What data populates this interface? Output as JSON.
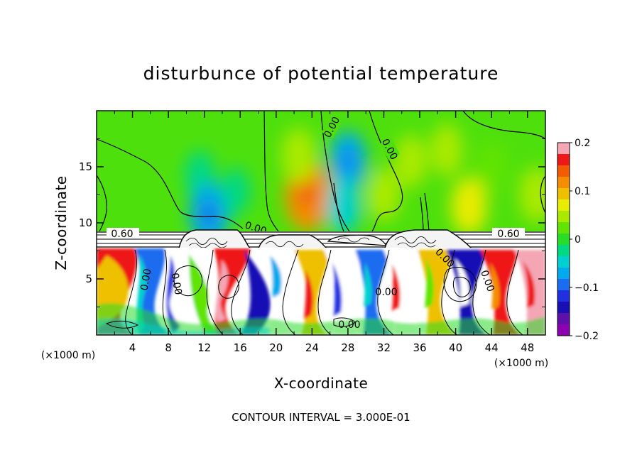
{
  "chart_data": {
    "type": "heatmap",
    "title": "disturbunce of potential temperature",
    "xlabel": "X-coordinate",
    "ylabel": "Z-coordinate",
    "x_unit": "(×1000 m)",
    "z_unit": "(×1000 m)",
    "xlim": [
      0,
      50
    ],
    "ylim": [
      0,
      20
    ],
    "x_ticks": [
      4,
      8,
      12,
      16,
      20,
      24,
      28,
      32,
      36,
      40,
      44,
      48
    ],
    "x_tick_labels": [
      "4",
      "8",
      "12",
      "16",
      "20",
      "24",
      "28",
      "32",
      "36",
      "40",
      "44",
      "48"
    ],
    "y_ticks": [
      5,
      10,
      15
    ],
    "y_tick_labels": [
      "5",
      "10",
      "15"
    ],
    "colorbar": {
      "range": [
        -0.2,
        0.2
      ],
      "tick_values": [
        0.2,
        0.1,
        0,
        -0.1,
        -0.2
      ],
      "tick_labels": [
        "0.2",
        "0.1",
        "0",
        "−0.1",
        "−0.2"
      ],
      "colors": [
        "#f4a6b4",
        "#ee1818",
        "#f45a00",
        "#f48e00",
        "#eec000",
        "#e8ec00",
        "#aaea00",
        "#60e400",
        "#28dc28",
        "#00d884",
        "#00d0d0",
        "#00aaee",
        "#1a6cf0",
        "#2030e0",
        "#1810b4",
        "#6010aa",
        "#8c00b0"
      ]
    },
    "contour_labels": [
      "0.60",
      "0.00",
      "0.00",
      "0.00",
      "0.00",
      "0.60",
      "0.00",
      "0.00",
      "0.00",
      "0.00",
      "0.00"
    ],
    "contour_interval_text": "CONTOUR INTERVAL = 3.000E-01",
    "upper_field": [
      {
        "x": 11.5,
        "z": 14.2,
        "value": -0.03
      },
      {
        "x": 12.5,
        "z": 10.8,
        "value": -0.08
      },
      {
        "x": 15.5,
        "z": 12.8,
        "value": -0.02
      },
      {
        "x": 23.5,
        "z": 12.5,
        "value": 0.12
      },
      {
        "x": 22.5,
        "z": 16.0,
        "value": 0.05
      },
      {
        "x": 28.0,
        "z": 15.5,
        "value": -0.07
      },
      {
        "x": 27.5,
        "z": 11.5,
        "value": -0.05
      },
      {
        "x": 32.0,
        "z": 12.5,
        "value": 0.04
      },
      {
        "x": 35.0,
        "z": 15.5,
        "value": 0.04
      },
      {
        "x": 39.0,
        "z": 16.5,
        "value": 0.04
      },
      {
        "x": 41.5,
        "z": 11.5,
        "value": 0.06
      },
      {
        "x": 44.0,
        "z": 15.0,
        "value": 0.03
      },
      {
        "x": 49.0,
        "z": 12.5,
        "value": 0.05
      }
    ]
  }
}
